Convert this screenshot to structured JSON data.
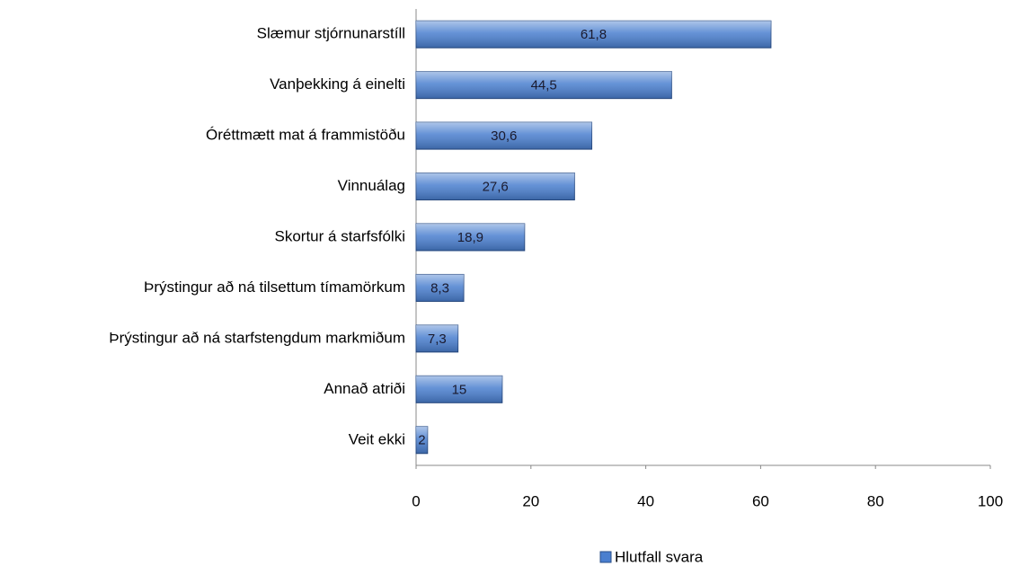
{
  "chart_data": {
    "type": "bar",
    "orientation": "horizontal",
    "categories": [
      "Slæmur stjórnunarstíll",
      "Vanþekking á einelti",
      "Óréttmætt mat á frammistöðu",
      "Vinnuálag",
      "Skortur á starfsfólki",
      "Þrýstingur að ná tilsettum tímamörkum",
      "Þrýstingur að ná starfstengdum markmiðum",
      "Annað atriði",
      "Veit ekki"
    ],
    "series": [
      {
        "name": "Hlutfall svara",
        "color": "#4a7fcf",
        "values": [
          61.8,
          44.5,
          30.6,
          27.6,
          18.9,
          8.3,
          7.3,
          15,
          2
        ],
        "value_labels": [
          "61,8",
          "44,5",
          "30,6",
          "27,6",
          "18,9",
          "8,3",
          "7,3",
          "15",
          "2"
        ]
      }
    ],
    "xlim": [
      0,
      100
    ],
    "xticks": [
      0,
      20,
      40,
      60,
      80,
      100
    ],
    "grid": false,
    "legend": "bottom"
  }
}
